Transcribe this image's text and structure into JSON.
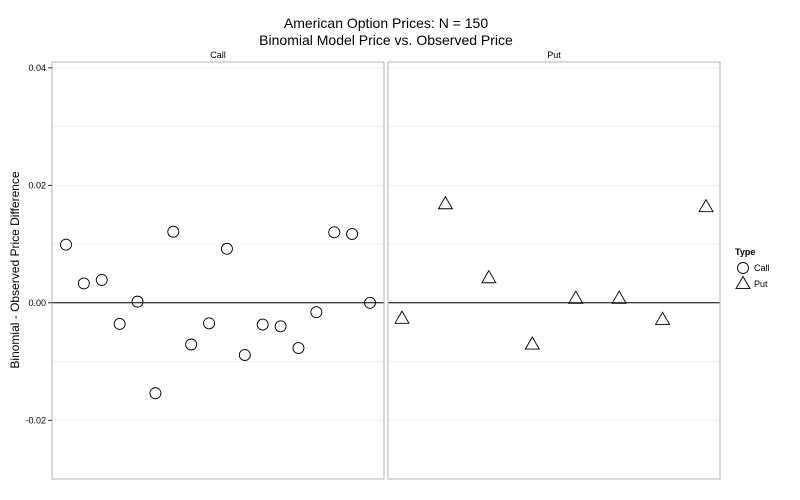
{
  "chart_data": {
    "type": "scatter",
    "title": "American Option Prices: N = 150",
    "subtitle": "Binomial Model Price vs. Observed Price",
    "xlabel": "",
    "ylabel": "Binomial - Observed Price Difference",
    "ylim": [
      -0.03,
      0.041
    ],
    "yticks": [
      -0.02,
      0.0,
      0.02,
      0.04
    ],
    "ytick_labels": [
      "-0.02",
      "0.00",
      "0.02",
      "0.04"
    ],
    "hline": 0,
    "grid": true,
    "legend": {
      "title": "Type",
      "position": "right",
      "entries": [
        {
          "label": "Call",
          "shape": "circle"
        },
        {
          "label": "Put",
          "shape": "triangle"
        }
      ]
    },
    "panels": [
      {
        "label": "Call",
        "shape": "circle",
        "values": [
          0.0099,
          0.0033,
          0.0039,
          -0.0036,
          0.0002,
          -0.0154,
          0.0121,
          -0.0071,
          -0.0035,
          0.0092,
          -0.0089,
          -0.0037,
          -0.004,
          -0.0077,
          -0.0016,
          0.012,
          0.0117,
          0.0
        ]
      },
      {
        "label": "Put",
        "shape": "triangle",
        "values": [
          -0.0027,
          0.0168,
          0.0042,
          -0.0071,
          0.0007,
          0.0007,
          -0.0029,
          0.0163
        ]
      }
    ]
  }
}
